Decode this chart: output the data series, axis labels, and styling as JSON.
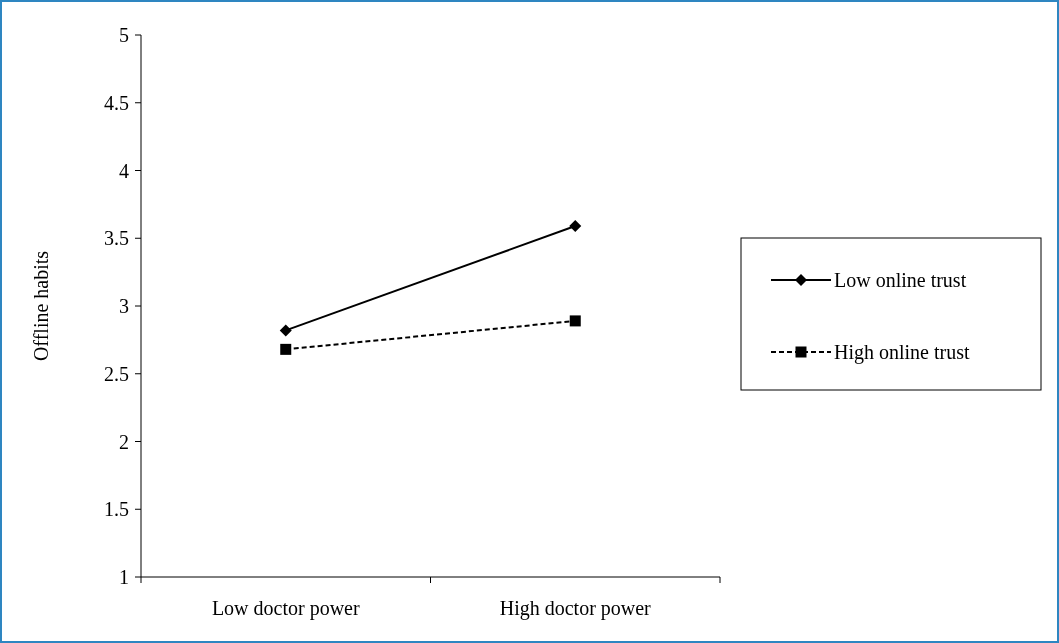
{
  "chart_data": {
    "type": "line",
    "ylabel": "Offline habits",
    "categories": [
      "Low doctor power",
      "High doctor power"
    ],
    "series": [
      {
        "name": "Low online trust",
        "color": "#000000",
        "values": [
          2.82,
          3.59
        ],
        "marker": "diamond",
        "line_style": "solid"
      },
      {
        "name": "High online trust",
        "color": "#000000",
        "values": [
          2.68,
          2.89
        ],
        "marker": "square",
        "line_style": "dashed"
      }
    ],
    "ylim": [
      1,
      5
    ],
    "yticks": [
      1,
      1.5,
      2,
      2.5,
      3,
      3.5,
      4,
      4.5,
      5
    ],
    "grid": false,
    "legend": "right"
  }
}
